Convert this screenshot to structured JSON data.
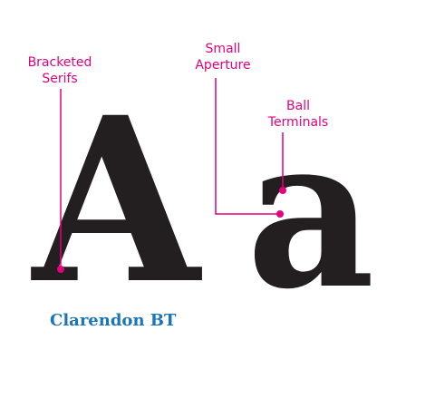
{
  "glyphs": {
    "uppercase": "A",
    "lowercase": "a"
  },
  "callouts": [
    {
      "id": "bracketed-serifs",
      "lines": [
        "Bracketed",
        "Serifs"
      ]
    },
    {
      "id": "small-aperture",
      "lines": [
        "Small",
        "Aperture"
      ]
    },
    {
      "id": "ball-terminals",
      "lines": [
        "Ball",
        "Terminals"
      ]
    }
  ],
  "font_name": "Clarendon BT",
  "colors": {
    "glyph": "#231f20",
    "accent": "#e6007e",
    "font_name": "#1b75bb",
    "background": "#ffffff"
  }
}
